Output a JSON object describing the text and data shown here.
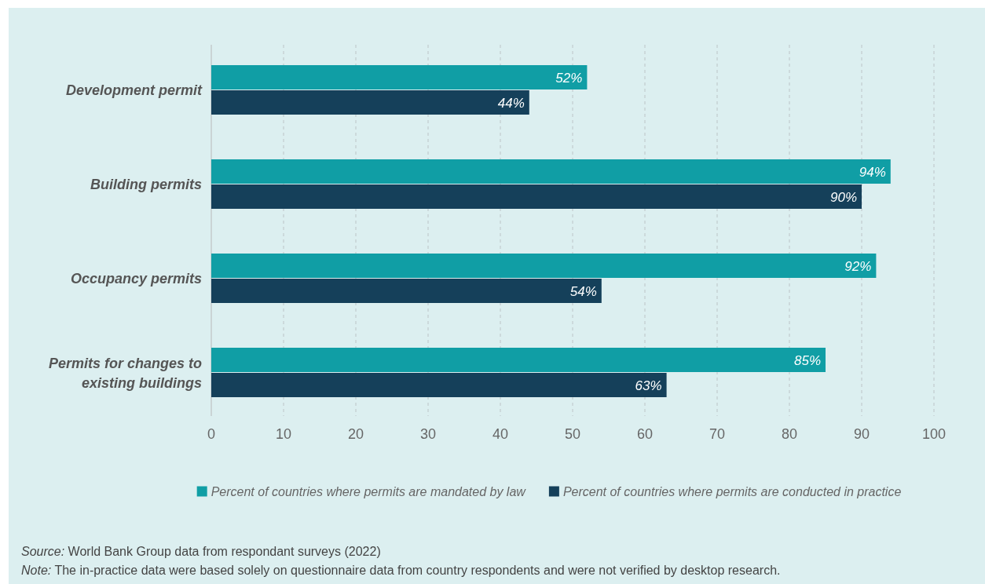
{
  "chart_data": {
    "type": "bar",
    "orientation": "horizontal",
    "categories": [
      "Development permit",
      "Building permits",
      "Occupancy permits",
      "Permits for changes to existing buildings"
    ],
    "series": [
      {
        "name": "Percent of countries where permits are mandated by law",
        "color": "#109ea5",
        "values": [
          52,
          94,
          92,
          85
        ],
        "value_labels": [
          "52%",
          "94%",
          "92%",
          "85%"
        ]
      },
      {
        "name": "Percent of countries where permits are conducted in practice",
        "color": "#15405a",
        "values": [
          44,
          90,
          54,
          63
        ],
        "value_labels": [
          "44%",
          "90%",
          "54%",
          "63%"
        ]
      }
    ],
    "xlim": [
      0,
      100
    ],
    "xticks": [
      0,
      10,
      20,
      30,
      40,
      50,
      60,
      70,
      80,
      90,
      100
    ],
    "grid": "x",
    "legend": "bottom",
    "annotations": [
      "Source: World Bank Group data from respondant surveys (2022)",
      "Note: The in-practice data were based solely on questionnaire data from country respondents and were not verified by desktop research."
    ]
  }
}
